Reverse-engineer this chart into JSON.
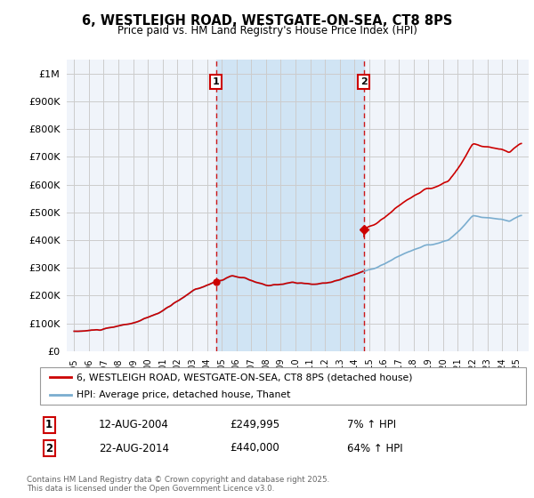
{
  "title": "6, WESTLEIGH ROAD, WESTGATE-ON-SEA, CT8 8PS",
  "subtitle": "Price paid vs. HM Land Registry's House Price Index (HPI)",
  "legend_label_red": "6, WESTLEIGH ROAD, WESTGATE-ON-SEA, CT8 8PS (detached house)",
  "legend_label_blue": "HPI: Average price, detached house, Thanet",
  "annotation1_date": "12-AUG-2004",
  "annotation1_price": "£249,995",
  "annotation1_hpi": "7% ↑ HPI",
  "annotation2_date": "22-AUG-2014",
  "annotation2_price": "£440,000",
  "annotation2_hpi": "64% ↑ HPI",
  "footer": "Contains HM Land Registry data © Crown copyright and database right 2025.\nThis data is licensed under the Open Government Licence v3.0.",
  "ylim": [
    0,
    1050000
  ],
  "yticks": [
    0,
    100000,
    200000,
    300000,
    400000,
    500000,
    600000,
    700000,
    800000,
    900000,
    1000000
  ],
  "ytick_labels": [
    "£0",
    "£100K",
    "£200K",
    "£300K",
    "£400K",
    "£500K",
    "£600K",
    "£700K",
    "£800K",
    "£900K",
    "£1M"
  ],
  "color_red": "#cc0000",
  "color_blue": "#7aadcf",
  "color_vline": "#cc0000",
  "bg_color": "#f0f4fa",
  "shade_color": "#d0e4f4",
  "grid_color": "#cccccc",
  "sale1_year": 2004.62,
  "sale1_price": 249995,
  "sale2_year": 2014.63,
  "sale2_price": 440000,
  "xlim_left": 1994.5,
  "xlim_right": 2025.8
}
